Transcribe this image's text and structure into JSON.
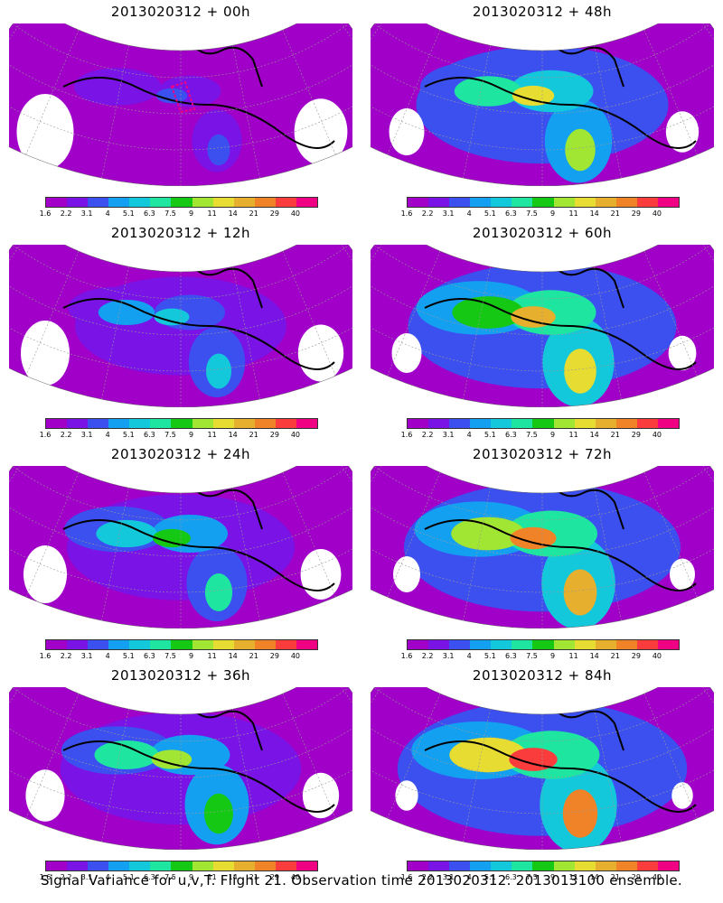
{
  "figure": {
    "caption": "Signal Variance for u,v,T. Flight 21. Observation time 2013020312. 2013013100 ensemble."
  },
  "panels": [
    {
      "title": "2013020312  + 00h",
      "lead_hours": 0,
      "intensity": 0.15,
      "target_marker": true
    },
    {
      "title": "2013020312  + 48h",
      "lead_hours": 48,
      "intensity": 0.55,
      "target_marker": false
    },
    {
      "title": "2013020312  + 12h",
      "lead_hours": 12,
      "intensity": 0.3,
      "target_marker": false
    },
    {
      "title": "2013020312  + 60h",
      "lead_hours": 60,
      "intensity": 0.65,
      "target_marker": false
    },
    {
      "title": "2013020312  + 24h",
      "lead_hours": 24,
      "intensity": 0.4,
      "target_marker": false
    },
    {
      "title": "2013020312  + 72h",
      "lead_hours": 72,
      "intensity": 0.7,
      "target_marker": false
    },
    {
      "title": "2013020312  + 36h",
      "lead_hours": 36,
      "intensity": 0.48,
      "target_marker": false
    },
    {
      "title": "2013020312  + 84h",
      "lead_hours": 84,
      "intensity": 0.78,
      "target_marker": false
    }
  ],
  "colorbar": {
    "labels": [
      "1.6",
      "2.2",
      "3.1",
      "4",
      "5.1",
      "6.3",
      "7.5",
      "9",
      "11",
      "14",
      "21",
      "29",
      "40"
    ],
    "colors": [
      "#a000c8",
      "#7a14e6",
      "#3c50f0",
      "#14a0f0",
      "#14c8dc",
      "#1ee6a0",
      "#14c814",
      "#a0e632",
      "#e6dc32",
      "#e6af2d",
      "#f08228",
      "#fa3c3c",
      "#f00082"
    ]
  }
}
